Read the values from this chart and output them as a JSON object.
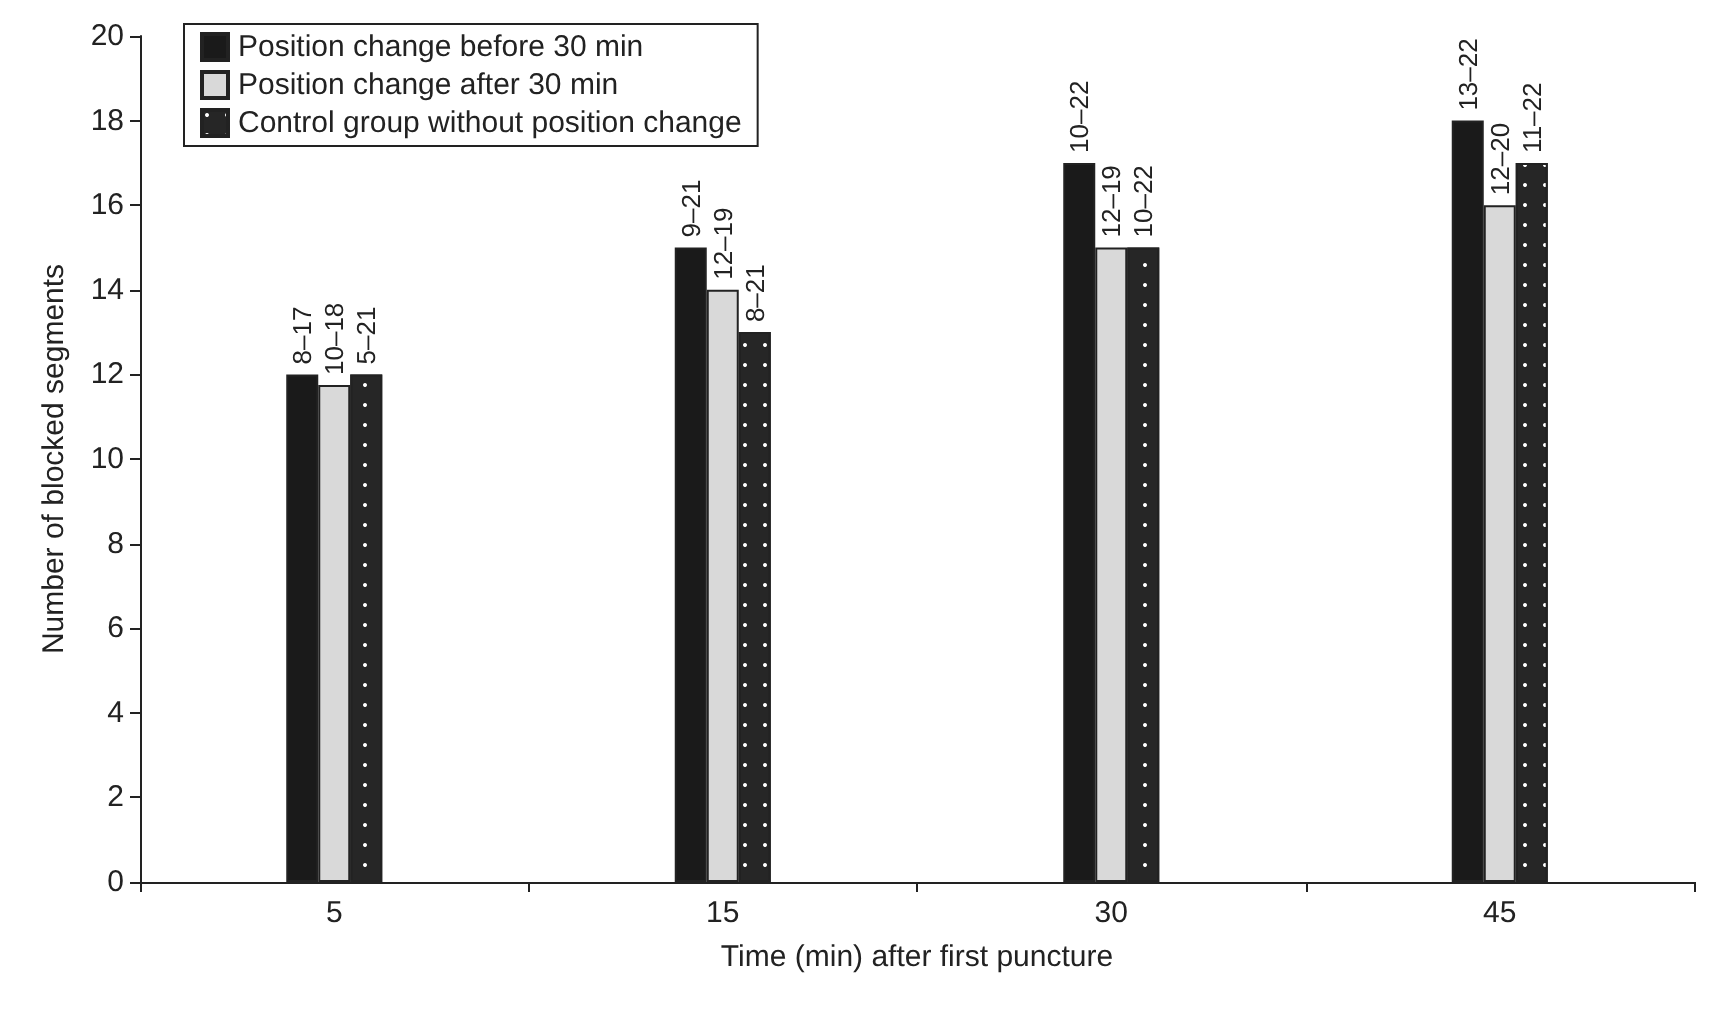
{
  "chart_data": {
    "type": "bar",
    "xlabel": "Time (min) after first puncture",
    "ylabel": "Number of blocked segments",
    "categories": [
      "5",
      "15",
      "30",
      "45"
    ],
    "series": [
      {
        "name": "Position change before 30 min",
        "color": "#1a1a1a",
        "values": [
          12,
          15,
          17,
          18
        ],
        "value_labels": [
          "8–17",
          "9–21",
          "10–22",
          "13–22"
        ]
      },
      {
        "name": "Position change after 30 min",
        "color": "#d9d9d9",
        "values": [
          11.75,
          14,
          15,
          16
        ],
        "value_labels": [
          "10–18",
          "12–19",
          "12–19",
          "12–20"
        ]
      },
      {
        "name": "Control group without position change",
        "color": "#262626",
        "values": [
          12,
          13,
          15,
          17
        ],
        "value_labels": [
          "5–21",
          "8–21",
          "10–22",
          "11–22"
        ]
      }
    ],
    "ylim": [
      0,
      20
    ],
    "yticks": [
      0,
      2,
      4,
      6,
      8,
      10,
      12,
      14,
      16,
      18,
      20
    ],
    "grid": false,
    "legend": "top left"
  }
}
